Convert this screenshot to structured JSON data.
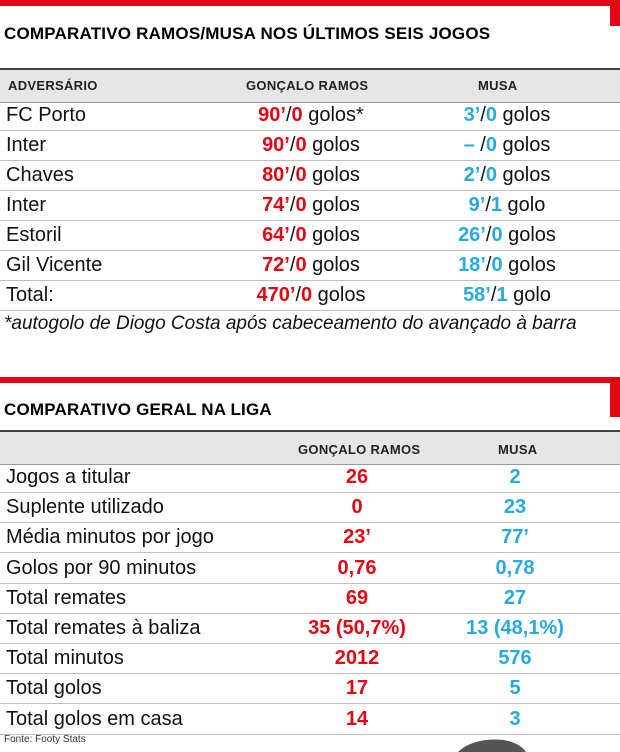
{
  "section1": {
    "title": "COMPARATIVO RAMOS/MUSA NOS ÚLTIMOS SEIS JOGOS",
    "headers": {
      "opponent": "ADVERSÁRIO",
      "ramos": "GONÇALO RAMOS",
      "musa": "MUSA"
    },
    "rows": [
      {
        "opponent": "FC Porto",
        "ramos_min": "90’",
        "ramos_sep": "/",
        "ramos_goals": "0",
        "ramos_unit": " golos*",
        "musa_min": "3’",
        "musa_sep": "/",
        "musa_goals": "0",
        "musa_unit": " golos"
      },
      {
        "opponent": "Inter",
        "ramos_min": "90’",
        "ramos_sep": "/",
        "ramos_goals": "0",
        "ramos_unit": " golos",
        "musa_min": "–",
        "musa_sep": " /",
        "musa_goals": "0",
        "musa_unit": " golos"
      },
      {
        "opponent": "Chaves",
        "ramos_min": "80’",
        "ramos_sep": "/",
        "ramos_goals": "0",
        "ramos_unit": " golos",
        "musa_min": "2’",
        "musa_sep": "/",
        "musa_goals": "0",
        "musa_unit": " golos"
      },
      {
        "opponent": "Inter",
        "ramos_min": "74’",
        "ramos_sep": "/",
        "ramos_goals": "0",
        "ramos_unit": " golos",
        "musa_min": "9’",
        "musa_sep": "/",
        "musa_goals": "1",
        "musa_unit": " golo"
      },
      {
        "opponent": "Estoril",
        "ramos_min": "64’",
        "ramos_sep": "/",
        "ramos_goals": "0",
        "ramos_unit": " golos",
        "musa_min": "26’",
        "musa_sep": "/",
        "musa_goals": "0",
        "musa_unit": " golos"
      },
      {
        "opponent": "Gil Vicente",
        "ramos_min": "72’",
        "ramos_sep": "/",
        "ramos_goals": "0",
        "ramos_unit": " golos",
        "musa_min": "18’",
        "musa_sep": "/",
        "musa_goals": "0",
        "musa_unit": " golos"
      },
      {
        "opponent": "Total:",
        "ramos_min": "470’",
        "ramos_sep": "/",
        "ramos_goals": "0",
        "ramos_unit": " golos",
        "musa_min": "58’",
        "musa_sep": "/",
        "musa_goals": "1",
        "musa_unit": " golo"
      }
    ],
    "footnote": "*autogolo de Diogo Costa após cabeceamento do avançado à barra"
  },
  "section2": {
    "title": "COMPARATIVO GERAL NA LIGA",
    "headers": {
      "ramos": "GONÇALO RAMOS",
      "musa": "MUSA"
    },
    "rows": [
      {
        "label": "Jogos a titular",
        "ramos": "26",
        "ramos_extra": "",
        "musa": "2",
        "musa_extra": ""
      },
      {
        "label": "Suplente utilizado",
        "ramos": "0",
        "ramos_extra": "",
        "musa": "23",
        "musa_extra": ""
      },
      {
        "label": "Média minutos por jogo",
        "ramos": "23’",
        "ramos_extra": "",
        "musa": "77’",
        "musa_extra": ""
      },
      {
        "label": "Golos por 90 minutos",
        "ramos": "0,76",
        "ramos_extra": "",
        "musa": "0,78",
        "musa_extra": ""
      },
      {
        "label": "Total remates",
        "ramos": "69",
        "ramos_extra": "",
        "musa": "27",
        "musa_extra": ""
      },
      {
        "label": "Total remates à baliza",
        "ramos": "35",
        "ramos_extra": " (50,7%)",
        "musa": "13",
        "musa_extra": " (48,1%)"
      },
      {
        "label": "Total minutos",
        "ramos": "2012",
        "ramos_extra": "",
        "musa": "576",
        "musa_extra": ""
      },
      {
        "label": "Total golos",
        "ramos": "17",
        "ramos_extra": "",
        "musa": "5",
        "musa_extra": ""
      },
      {
        "label": "Total golos em casa",
        "ramos": "14",
        "ramos_extra": "",
        "musa": "3",
        "musa_extra": ""
      }
    ],
    "source": "Fonte: Footy Stats"
  },
  "colors": {
    "red": "#e30613",
    "blue": "#27a9e1",
    "header_bg": "#e6e6e6"
  }
}
